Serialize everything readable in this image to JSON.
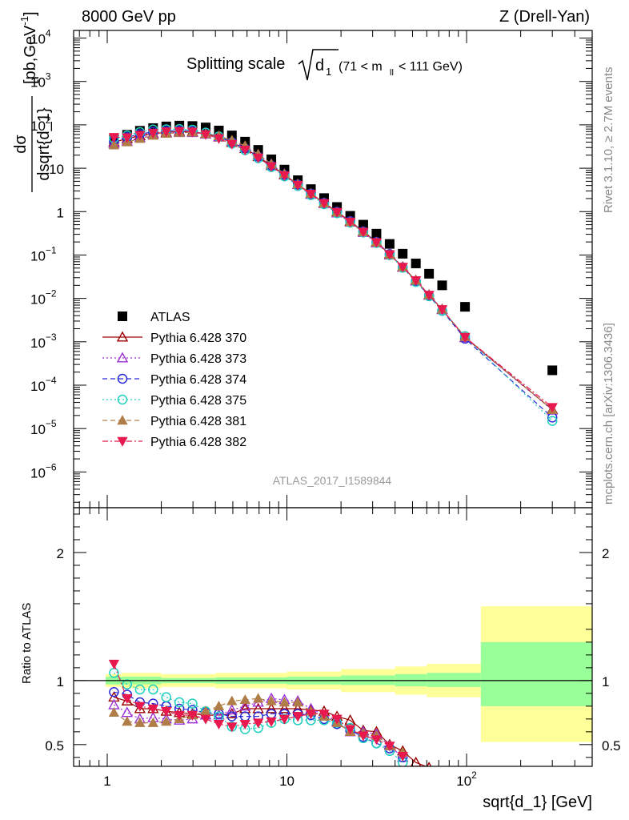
{
  "header": {
    "left": "8000 GeV pp",
    "right": "Z (Drell-Yan)"
  },
  "title": {
    "main": "Splitting scale",
    "sym": "d",
    "sub": "1",
    "range_open": "(71 < m",
    "range_sub": "ll",
    "range_close": " < 111 GeV)"
  },
  "side_labels": {
    "rivet": "Rivet 3.1.10, ≥ 2.7M events",
    "mcplots": "mcplots.cern.ch [arXiv:1306.3436]"
  },
  "watermark": "ATLAS_2017_I1589844",
  "axes": {
    "ylabel_num": "dσ",
    "ylabel_den": "dsqrt{d_1}",
    "ylabel_unit": "[pb,GeV",
    "ylabel_unit_sup": "-1",
    "ylabel_unit_close": "]",
    "ratio_ylabel": "Ratio to ATLAS",
    "xlabel": "sqrt{d_1} [GeV]"
  },
  "chart_data": {
    "type": "scatter",
    "x_scale": "log",
    "y_scale": "log",
    "xlim": [
      0.65,
      500
    ],
    "ylim": [
      1.5e-07,
      15000.0
    ],
    "ratio_ylim": [
      0.33,
      2.35
    ],
    "x_ticks": [
      {
        "v": 1,
        "label": "1"
      },
      {
        "v": 10,
        "label": "10"
      },
      {
        "v": 100,
        "label": "10",
        "sup": "2"
      }
    ],
    "y_ticks": [
      {
        "v": 10000,
        "label": "10",
        "sup": "4"
      },
      {
        "v": 1000,
        "label": "10",
        "sup": "3"
      },
      {
        "v": 100,
        "label": "10",
        "sup": "2"
      },
      {
        "v": 10,
        "label": "10",
        "sup": ""
      },
      {
        "v": 1,
        "label": "1",
        "sup": ""
      },
      {
        "v": 0.1,
        "label": "10",
        "sup": "−1"
      },
      {
        "v": 0.01,
        "label": "10",
        "sup": "−2"
      },
      {
        "v": 0.001,
        "label": "10",
        "sup": "−3"
      },
      {
        "v": 0.0001,
        "label": "10",
        "sup": "−4"
      },
      {
        "v": 1e-05,
        "label": "10",
        "sup": "−5"
      },
      {
        "v": 1e-06,
        "label": "10",
        "sup": "−6"
      }
    ],
    "ratio_ticks": [
      {
        "v": 2,
        "label": "2"
      },
      {
        "v": 1,
        "label": "1"
      },
      {
        "v": 0.5,
        "label": "0.5"
      }
    ],
    "x": [
      1.09,
      1.29,
      1.52,
      1.8,
      2.13,
      2.52,
      2.98,
      3.53,
      4.18,
      4.94,
      5.85,
      6.92,
      8.19,
      9.69,
      11.5,
      13.6,
      16.1,
      19.0,
      22.5,
      26.6,
      31.5,
      37.3,
      44.1,
      52.2,
      61.8,
      73.1,
      98,
      300
    ],
    "series": [
      {
        "name": "ATLAS",
        "style": "data",
        "color": "#000000",
        "values": [
          46,
          59,
          73,
          84,
          92,
          96,
          94,
          87,
          74,
          57,
          41,
          26.5,
          16,
          9.3,
          5.3,
          3.3,
          2.05,
          1.28,
          0.8,
          0.5,
          0.31,
          0.18,
          0.107,
          0.064,
          0.037,
          0.02,
          0.0064,
          0.00022
        ]
      },
      {
        "name": "Pythia 6.428 370",
        "style": "solid",
        "marker": "triangle-up-open",
        "color": "#9b0000",
        "values": [
          40,
          48,
          56,
          63,
          67,
          70,
          69.5,
          62,
          52.5,
          39,
          28.5,
          18.5,
          11.5,
          7.0,
          4.2,
          2.6,
          1.6,
          0.99,
          0.6,
          0.35,
          0.2,
          0.105,
          0.053,
          0.026,
          0.012,
          0.0056,
          0.00125,
          2.75e-05
        ]
      },
      {
        "name": "Pythia 6.428 373",
        "style": "dotted",
        "marker": "triangle-up-open",
        "color": "#9b2fd8",
        "values": [
          37,
          42,
          51,
          60,
          64,
          66,
          66,
          61,
          53.5,
          42,
          31.5,
          20.5,
          12.4,
          7.3,
          4.2,
          2.5,
          1.52,
          0.93,
          0.57,
          0.33,
          0.19,
          0.1,
          0.052,
          0.025,
          0.0118,
          0.0055,
          0.00125,
          2.65e-05
        ]
      },
      {
        "name": "Pythia 6.428 374",
        "style": "dashed",
        "marker": "circle-open",
        "color": "#2a2ad8",
        "values": [
          42,
          52,
          61,
          69,
          72,
          74,
          72,
          65,
          53.5,
          40,
          28.5,
          18.5,
          11.5,
          7.0,
          4.2,
          2.6,
          1.6,
          0.99,
          0.6,
          0.35,
          0.2,
          0.105,
          0.052,
          0.025,
          0.0115,
          0.0052,
          0.00118,
          1.8e-05
        ]
      },
      {
        "name": "Pythia 6.428 375",
        "style": "dotted",
        "marker": "circle-open",
        "color": "#1fcfbf",
        "values": [
          49,
          57,
          68,
          78,
          79,
          80,
          77,
          66,
          54,
          37,
          26,
          17,
          10.6,
          6.5,
          3.9,
          2.4,
          1.48,
          0.92,
          0.56,
          0.33,
          0.19,
          0.1,
          0.051,
          0.024,
          0.0112,
          0.0052,
          0.00135,
          1.5e-05
        ]
      },
      {
        "name": "Pythia 6.428 381",
        "style": "dashed",
        "marker": "triangle-up-filled",
        "color": "#b07d48",
        "values": [
          34,
          40,
          48,
          57,
          63,
          66,
          67,
          62,
          55.5,
          44,
          33,
          21,
          12.6,
          7.4,
          4.3,
          2.6,
          1.56,
          0.96,
          0.58,
          0.34,
          0.195,
          0.102,
          0.053,
          0.026,
          0.012,
          0.0056,
          0.0013,
          2.7e-05
        ]
      },
      {
        "name": "Pythia 6.428 382",
        "style": "dashdot",
        "marker": "triangle-down-filled",
        "color": "#e8194f",
        "values": [
          52,
          51,
          58,
          65,
          70,
          71,
          69,
          60,
          48.5,
          36,
          26.5,
          17.5,
          11,
          6.8,
          4.1,
          2.55,
          1.56,
          0.97,
          0.58,
          0.34,
          0.195,
          0.103,
          0.053,
          0.026,
          0.012,
          0.0056,
          0.00128,
          3.1e-05
        ]
      }
    ],
    "ratio_series": [
      {
        "name": "Pythia 6.428 370",
        "values": [
          0.87,
          0.84,
          0.78,
          0.78,
          0.76,
          0.75,
          0.74,
          0.73,
          0.73,
          0.74,
          0.78,
          0.78,
          0.78,
          0.78,
          0.78,
          0.77,
          0.76,
          0.72,
          0.69,
          0.61,
          0.6,
          0.5,
          0.45,
          0.36,
          0.32
        ]
      },
      {
        "name": "Pythia 6.428 373",
        "values": [
          0.81,
          0.75,
          0.7,
          0.71,
          0.7,
          0.69,
          0.7,
          0.73,
          0.73,
          0.77,
          0.8,
          0.83,
          0.86,
          0.85,
          0.84,
          0.78,
          0.73,
          0.68,
          0.6,
          0.6,
          0.58,
          0.49,
          0.4
        ]
      },
      {
        "name": "Pythia 6.428 374",
        "values": [
          0.91,
          0.89,
          0.83,
          0.82,
          0.8,
          0.78,
          0.77,
          0.75,
          0.74,
          0.72,
          0.72,
          0.72,
          0.74,
          0.74,
          0.74,
          0.73,
          0.7,
          0.66,
          0.61,
          0.56,
          0.51,
          0.47,
          0.4
        ]
      },
      {
        "name": "Pythia 6.428 375",
        "values": [
          1.06,
          0.97,
          0.93,
          0.93,
          0.87,
          0.83,
          0.82,
          0.76,
          0.72,
          0.64,
          0.62,
          0.63,
          0.67,
          0.7,
          0.69,
          0.69,
          0.69,
          0.67,
          0.63,
          0.55,
          0.51,
          0.45,
          0.36
        ]
      },
      {
        "name": "Pythia 6.428 381",
        "values": [
          0.75,
          0.68,
          0.67,
          0.67,
          0.68,
          0.7,
          0.73,
          0.76,
          0.8,
          0.84,
          0.85,
          0.86,
          0.84,
          0.83,
          0.83,
          0.76,
          0.72,
          0.67,
          0.6,
          0.59,
          0.57,
          0.49,
          0.44
        ]
      },
      {
        "name": "Pythia 6.428 382",
        "values": [
          1.13,
          0.86,
          0.8,
          0.78,
          0.76,
          0.73,
          0.73,
          0.7,
          0.66,
          0.64,
          0.66,
          0.67,
          0.68,
          0.7,
          0.72,
          0.74,
          0.74,
          0.7,
          0.62,
          0.57,
          0.54,
          0.49,
          0.41
        ]
      }
    ],
    "ratio_bands": [
      {
        "x": [
          0.98,
          1.2
        ],
        "green": [
          0.97,
          1.03
        ],
        "yellow": [
          0.95,
          1.05
        ]
      },
      {
        "x": [
          1.2,
          2.0
        ],
        "green": [
          0.97,
          1.03
        ],
        "yellow": [
          0.94,
          1.06
        ]
      },
      {
        "x": [
          2.0,
          4.0
        ],
        "green": [
          0.98,
          1.02
        ],
        "yellow": [
          0.95,
          1.05
        ]
      },
      {
        "x": [
          4.0,
          10.0
        ],
        "green": [
          0.975,
          1.025
        ],
        "yellow": [
          0.94,
          1.06
        ]
      },
      {
        "x": [
          10.0,
          20.0
        ],
        "green": [
          0.97,
          1.03
        ],
        "yellow": [
          0.93,
          1.07
        ]
      },
      {
        "x": [
          20.0,
          40.0
        ],
        "green": [
          0.965,
          1.04
        ],
        "yellow": [
          0.91,
          1.09
        ]
      },
      {
        "x": [
          40.0,
          60.0
        ],
        "green": [
          0.955,
          1.05
        ],
        "yellow": [
          0.89,
          1.11
        ]
      },
      {
        "x": [
          60.0,
          120.0
        ],
        "green": [
          0.95,
          1.06
        ],
        "yellow": [
          0.87,
          1.13
        ]
      },
      {
        "x": [
          120.0,
          500.0
        ],
        "green": [
          0.8,
          1.3
        ],
        "yellow": [
          0.52,
          1.58
        ]
      }
    ]
  }
}
